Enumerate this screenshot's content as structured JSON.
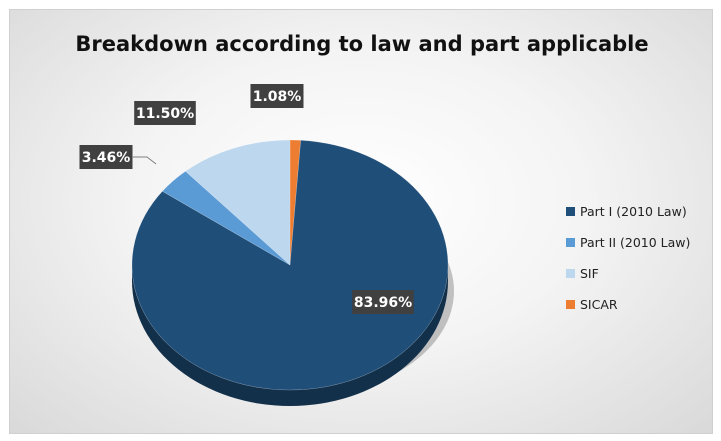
{
  "chart_data": {
    "type": "pie",
    "title": "Breakdown according to law and part applicable",
    "slices": [
      {
        "name": "Part I (2010 Law)",
        "value": 83.96,
        "label": "83.96%",
        "color": "#1f4e79"
      },
      {
        "name": "Part II (2010 Law)",
        "value": 3.46,
        "label": "3.46%",
        "color": "#5b9bd5"
      },
      {
        "name": "SIF",
        "value": 11.5,
        "label": "11.50%",
        "color": "#bdd7ee"
      },
      {
        "name": "SICAR",
        "value": 1.08,
        "label": "1.08%",
        "color": "#ed7d31"
      }
    ],
    "legend_position": "right",
    "style": "3d"
  }
}
